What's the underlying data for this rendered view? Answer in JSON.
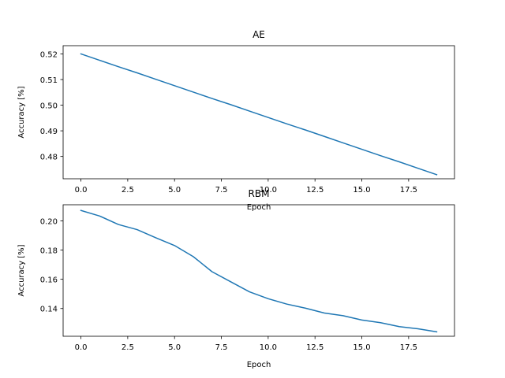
{
  "chart_data": [
    {
      "type": "line",
      "title": "AE",
      "xlabel": "Epoch",
      "ylabel": "Accuracy [%]",
      "xlim": [
        -0.95,
        19.95
      ],
      "ylim": [
        0.4713,
        0.5232
      ],
      "xticks": [
        "0.0",
        "2.5",
        "5.0",
        "7.5",
        "10.0",
        "12.5",
        "15.0",
        "17.5"
      ],
      "xtick_values": [
        0,
        2.5,
        5,
        7.5,
        10,
        12.5,
        15,
        17.5
      ],
      "yticks": [
        "0.48",
        "0.49",
        "0.50",
        "0.51",
        "0.52"
      ],
      "ytick_values": [
        0.48,
        0.49,
        0.5,
        0.51,
        0.52
      ],
      "grid": false,
      "line_color": "#1f77b4",
      "series": [
        {
          "x": [
            0,
            1,
            2,
            3,
            4,
            5,
            6,
            7,
            8,
            9,
            10,
            11,
            12,
            13,
            14,
            15,
            16,
            17,
            18,
            19
          ],
          "values": [
            0.52,
            0.5175,
            0.515,
            0.5126,
            0.5101,
            0.5076,
            0.5051,
            0.5026,
            0.5002,
            0.4977,
            0.4952,
            0.4927,
            0.4903,
            0.4878,
            0.4853,
            0.4828,
            0.4803,
            0.4779,
            0.4754,
            0.4729
          ]
        }
      ]
    },
    {
      "type": "line",
      "title": "RBM",
      "xlabel": "Epoch",
      "ylabel": "Accuracy [%]",
      "xlim": [
        -0.95,
        19.95
      ],
      "ylim": [
        0.121,
        0.211
      ],
      "xticks": [
        "0.0",
        "2.5",
        "5.0",
        "7.5",
        "10.0",
        "12.5",
        "15.0",
        "17.5"
      ],
      "xtick_values": [
        0,
        2.5,
        5,
        7.5,
        10,
        12.5,
        15,
        17.5
      ],
      "yticks": [
        "0.14",
        "0.16",
        "0.18",
        "0.20"
      ],
      "ytick_values": [
        0.14,
        0.16,
        0.18,
        0.2
      ],
      "grid": false,
      "line_color": "#1f77b4",
      "series": [
        {
          "x": [
            0,
            1,
            2,
            3,
            4,
            5,
            6,
            7,
            8,
            9,
            10,
            11,
            12,
            13,
            14,
            15,
            16,
            17,
            18,
            19
          ],
          "values": [
            0.2071,
            0.2033,
            0.1975,
            0.194,
            0.1884,
            0.1831,
            0.1755,
            0.1652,
            0.1583,
            0.1514,
            0.1467,
            0.143,
            0.1402,
            0.1369,
            0.1351,
            0.1321,
            0.1303,
            0.1276,
            0.1261,
            0.124
          ]
        }
      ]
    }
  ]
}
